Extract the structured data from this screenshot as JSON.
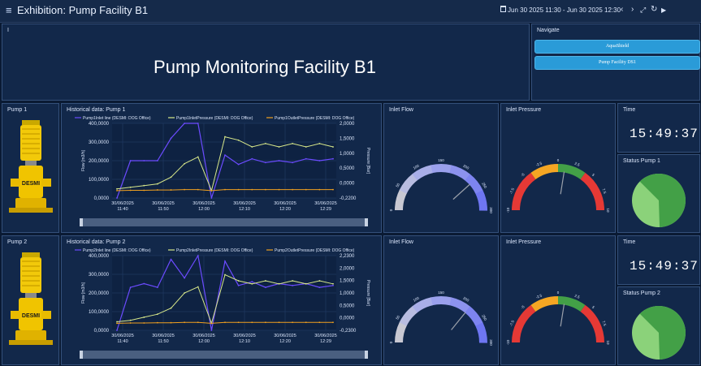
{
  "header": {
    "menu_icon": "menu-icon",
    "title": "Exhibition: Pump Facility B1",
    "time_range": "Jun 30 2025 11:30 - Jun 30 2025 12:30",
    "controls": [
      "chevron-left-icon",
      "chevron-right-icon",
      "expand-icon",
      "refresh-icon",
      "play-icon"
    ]
  },
  "main": {
    "title_panel_label": "I",
    "title": "Pump Monitoring Facility B1"
  },
  "navigate": {
    "title": "Navigate",
    "buttons": [
      "AquaShield",
      "Pump Facility DS1"
    ]
  },
  "pumps": [
    {
      "panel_title": "Pump 1",
      "image_label": "DESMI",
      "hist_title": "Historical data: Pump 1",
      "legend": [
        "Pump1Inlet line (DESMI: DOG Office)",
        "Pump1InletPressure (DESMI: DOG Office)",
        "Pump1OutletPressure (DESMI: DOG Office)"
      ],
      "y_left_label": "Flow [m3/h]",
      "y_right_label": "Pressure [Bar]",
      "y_left_ticks": [
        "400,0000",
        "300,0000",
        "200,0000",
        "100,0000",
        "0,0000"
      ],
      "y_right_ticks": [
        "2,0000",
        "1,5000",
        "1,0000",
        "0,5000",
        "0,0000",
        "-0,2200"
      ],
      "x_ticks": [
        [
          "30/06/2025",
          "11:40"
        ],
        [
          "30/06/2025",
          "11:50"
        ],
        [
          "30/06/2025",
          "12:00"
        ],
        [
          "30/06/2025",
          "12:10"
        ],
        [
          "30/06/2025",
          "12:20"
        ],
        [
          "30/06/2025",
          "12:29"
        ]
      ],
      "x_ticks_shown": [
        "30/06/2025\n11:40",
        "30/06/2025\n11:50",
        "30/06/2025\n12:00",
        "30/06/2025\n12:10",
        "30/06/2025\n12:20",
        "30/06/2025\n12:29"
      ],
      "flow_title": "Inlet Flow",
      "pressure_title": "Inlet Pressure",
      "time_title": "Time",
      "time": "15:49:37",
      "status_title": "Status Pump 1"
    },
    {
      "panel_title": "Pump 2",
      "image_label": "DESMI",
      "hist_title": "Historical data: Pump 2",
      "legend": [
        "Pump2Inlet line (DESMI: DOG Office)",
        "Pump2InletPressure (DESMI: DOG Office)",
        "Pump2OutletPressure (DESMI: DOG Office)"
      ],
      "y_left_label": "Flow [m3/h]",
      "y_right_label": "Pressure [Bar]",
      "y_left_ticks": [
        "400,0000",
        "300,0000",
        "200,0000",
        "100,0000",
        "0,0000"
      ],
      "y_right_ticks": [
        "2,2300",
        "2,0000",
        "1,5000",
        "1,0000",
        "0,5000",
        "0,0000",
        "-0,2300"
      ],
      "x_ticks": [
        [
          "30/06/2025",
          "11:40"
        ],
        [
          "30/06/2025",
          "11:50"
        ],
        [
          "30/06/2025",
          "12:00"
        ],
        [
          "30/06/2025",
          "12:10"
        ],
        [
          "30/06/2025",
          "12:20"
        ],
        [
          "30/06/2025",
          "12:29"
        ]
      ],
      "flow_title": "Inlet Flow",
      "pressure_title": "Inlet Pressure",
      "time_title": "Time",
      "time": "15:49:37",
      "status_title": "Status Pump 2"
    }
  ],
  "flow_gauge": {
    "ticks": [
      "0",
      "50",
      "100",
      "150",
      "200",
      "250",
      "300"
    ]
  },
  "pressure_gauge": {
    "ticks": [
      "-10",
      "-7.5",
      "-5",
      "-2.5",
      "0",
      "2.5",
      "5",
      "7.5",
      "10"
    ]
  },
  "colors": {
    "background": "#0a1a33",
    "panel": "#12284a",
    "flow_series": "#6b4bff",
    "inlet_pressure_series": "#d8e88a",
    "outlet_pressure_series": "#f0a020",
    "status_dark": "#43a047",
    "status_light": "#8bd27a",
    "button": "#2a9bd8"
  },
  "chart_data": [
    {
      "type": "line",
      "title": "Historical data: Pump 1",
      "ylabel": "Flow [m3/h]",
      "y2label": "Pressure [Bar]",
      "ylim": [
        0,
        400
      ],
      "y2lim": [
        -0.22,
        2.0
      ],
      "x": [
        "11:30",
        "11:35",
        "11:38",
        "11:40",
        "11:44",
        "11:46",
        "11:48",
        "11:50",
        "11:52",
        "11:55",
        "12:00",
        "12:05",
        "12:10",
        "12:15",
        "12:20",
        "12:25",
        "12:29"
      ],
      "series": [
        {
          "name": "Pump1Inlet line (DESMI: DOG Office)",
          "axis": "left",
          "values": [
            0,
            200,
            200,
            200,
            320,
            400,
            400,
            0,
            230,
            180,
            210,
            190,
            200,
            190,
            210,
            200,
            210
          ]
        },
        {
          "name": "Pump1InletPressure (DESMI: DOG Office)",
          "axis": "right",
          "values": [
            0.05,
            0.1,
            0.15,
            0.2,
            0.4,
            0.8,
            1.0,
            0.0,
            1.6,
            1.5,
            1.3,
            1.4,
            1.3,
            1.4,
            1.3,
            1.4,
            1.3
          ]
        },
        {
          "name": "Pump1OutletPressure (DESMI: DOG Office)",
          "axis": "right",
          "values": [
            0.0,
            0.01,
            0.01,
            0.02,
            0.02,
            0.03,
            0.03,
            0.0,
            0.03,
            0.03,
            0.03,
            0.03,
            0.03,
            0.03,
            0.03,
            0.03,
            0.03
          ]
        }
      ]
    },
    {
      "type": "line",
      "title": "Historical data: Pump 2",
      "ylabel": "Flow [m3/h]",
      "y2label": "Pressure [Bar]",
      "ylim": [
        0,
        400
      ],
      "y2lim": [
        -0.23,
        2.23
      ],
      "x": [
        "11:30",
        "11:35",
        "11:38",
        "11:40",
        "11:44",
        "11:46",
        "11:48",
        "11:50",
        "11:52",
        "11:55",
        "12:00",
        "12:05",
        "12:10",
        "12:15",
        "12:20",
        "12:25",
        "12:29"
      ],
      "series": [
        {
          "name": "Pump2Inlet line (DESMI: DOG Office)",
          "axis": "left",
          "values": [
            0,
            230,
            250,
            230,
            380,
            280,
            400,
            0,
            370,
            240,
            260,
            230,
            250,
            240,
            250,
            230,
            240
          ]
        },
        {
          "name": "Pump2InletPressure (DESMI: DOG Office)",
          "axis": "right",
          "values": [
            0.05,
            0.1,
            0.2,
            0.3,
            0.5,
            1.0,
            1.2,
            0.0,
            1.6,
            1.4,
            1.3,
            1.4,
            1.3,
            1.4,
            1.3,
            1.4,
            1.3
          ]
        },
        {
          "name": "Pump2OutletPressure (DESMI: DOG Office)",
          "axis": "right",
          "values": [
            0.0,
            0.01,
            0.01,
            0.02,
            0.02,
            0.03,
            0.03,
            0.0,
            0.03,
            0.03,
            0.03,
            0.03,
            0.03,
            0.03,
            0.03,
            0.03,
            0.03
          ]
        }
      ]
    }
  ],
  "gauges": {
    "pump1_flow": 230,
    "pump1_pressure": 1.0,
    "pump2_flow": 215,
    "pump2_pressure": 1.0,
    "pump1_status_fraction_dark": 0.62,
    "pump2_status_fraction_dark": 0.62
  }
}
